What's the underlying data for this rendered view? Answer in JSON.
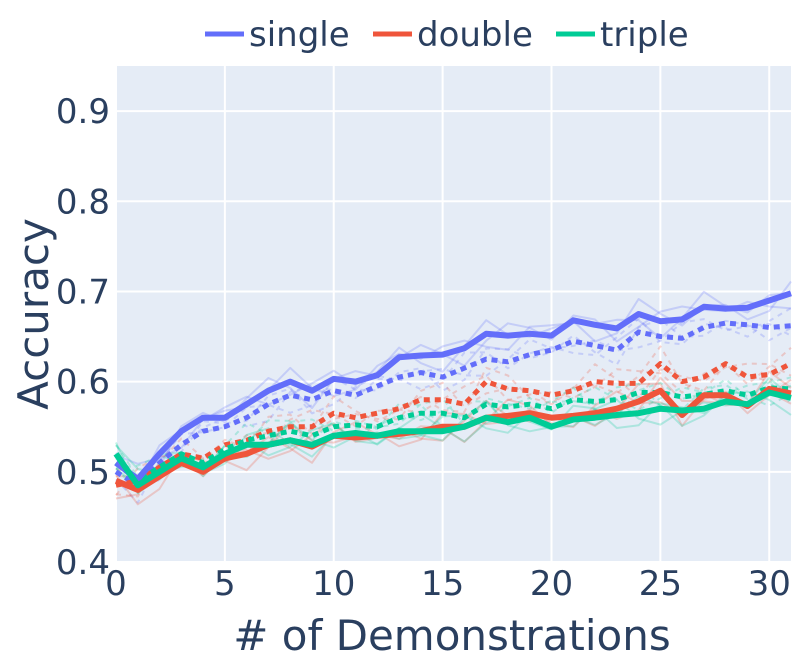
{
  "chart_data": {
    "type": "line",
    "xlabel": "# of Demonstrations",
    "ylabel": "Accuracy",
    "xlim": [
      0,
      31
    ],
    "ylim": [
      0.4,
      0.95
    ],
    "xticks": [
      0,
      5,
      10,
      15,
      20,
      25,
      30
    ],
    "yticks": [
      0.4,
      0.5,
      0.6,
      0.7,
      0.8,
      0.9
    ],
    "xtick_labels": [
      "0",
      "5",
      "10",
      "15",
      "20",
      "25",
      "30"
    ],
    "ytick_labels": [
      "0.4",
      "0.5",
      "0.6",
      "0.7",
      "0.8",
      "0.9"
    ],
    "grid": true,
    "legend_position": "top",
    "legend": [
      "single",
      "double",
      "triple"
    ],
    "colors": {
      "single": "#636efa",
      "double": "#ef553b",
      "triple": "#00cc96",
      "plot_bg": "#e5ecf6",
      "text": "#2a3f5f"
    },
    "x": [
      0,
      1,
      2,
      3,
      4,
      5,
      6,
      7,
      8,
      9,
      10,
      11,
      12,
      13,
      14,
      15,
      16,
      17,
      18,
      19,
      20,
      21,
      22,
      23,
      24,
      25,
      26,
      27,
      28,
      29,
      30,
      31
    ],
    "series": [
      {
        "name": "single",
        "style": "solid",
        "values": [
          0.51,
          0.492,
          0.52,
          0.545,
          0.56,
          0.56,
          0.575,
          0.59,
          0.6,
          0.59,
          0.603,
          0.6,
          0.607,
          0.627,
          0.629,
          0.63,
          0.637,
          0.653,
          0.651,
          0.653,
          0.651,
          0.668,
          0.663,
          0.659,
          0.675,
          0.667,
          0.669,
          0.683,
          0.681,
          0.682,
          0.69,
          0.698
        ]
      },
      {
        "name": "single",
        "style": "dotted",
        "values": [
          0.5,
          0.485,
          0.51,
          0.53,
          0.545,
          0.55,
          0.56,
          0.575,
          0.585,
          0.58,
          0.59,
          0.585,
          0.595,
          0.605,
          0.61,
          0.605,
          0.615,
          0.625,
          0.622,
          0.63,
          0.635,
          0.645,
          0.64,
          0.635,
          0.655,
          0.65,
          0.648,
          0.66,
          0.665,
          0.663,
          0.66,
          0.662
        ]
      },
      {
        "name": "double",
        "style": "solid",
        "values": [
          0.49,
          0.48,
          0.495,
          0.51,
          0.5,
          0.515,
          0.52,
          0.53,
          0.535,
          0.528,
          0.54,
          0.538,
          0.54,
          0.542,
          0.545,
          0.55,
          0.55,
          0.56,
          0.562,
          0.565,
          0.56,
          0.562,
          0.565,
          0.57,
          0.578,
          0.59,
          0.563,
          0.585,
          0.585,
          0.573,
          0.592,
          0.587
        ]
      },
      {
        "name": "double",
        "style": "dotted",
        "values": [
          0.485,
          0.49,
          0.505,
          0.52,
          0.515,
          0.53,
          0.535,
          0.545,
          0.55,
          0.55,
          0.565,
          0.56,
          0.565,
          0.57,
          0.58,
          0.58,
          0.575,
          0.6,
          0.592,
          0.59,
          0.585,
          0.59,
          0.6,
          0.598,
          0.598,
          0.62,
          0.6,
          0.605,
          0.62,
          0.605,
          0.608,
          0.62
        ]
      },
      {
        "name": "triple",
        "style": "solid",
        "values": [
          0.52,
          0.485,
          0.5,
          0.515,
          0.505,
          0.52,
          0.53,
          0.53,
          0.535,
          0.53,
          0.54,
          0.543,
          0.54,
          0.545,
          0.545,
          0.545,
          0.55,
          0.56,
          0.555,
          0.56,
          0.55,
          0.558,
          0.56,
          0.563,
          0.565,
          0.57,
          0.568,
          0.57,
          0.578,
          0.575,
          0.588,
          0.582
        ]
      },
      {
        "name": "triple",
        "style": "dotted",
        "values": [
          0.51,
          0.49,
          0.505,
          0.52,
          0.51,
          0.525,
          0.535,
          0.54,
          0.545,
          0.54,
          0.55,
          0.552,
          0.55,
          0.56,
          0.565,
          0.565,
          0.56,
          0.575,
          0.572,
          0.575,
          0.57,
          0.58,
          0.578,
          0.58,
          0.588,
          0.588,
          0.583,
          0.586,
          0.59,
          0.585,
          0.593,
          0.592
        ]
      }
    ]
  }
}
